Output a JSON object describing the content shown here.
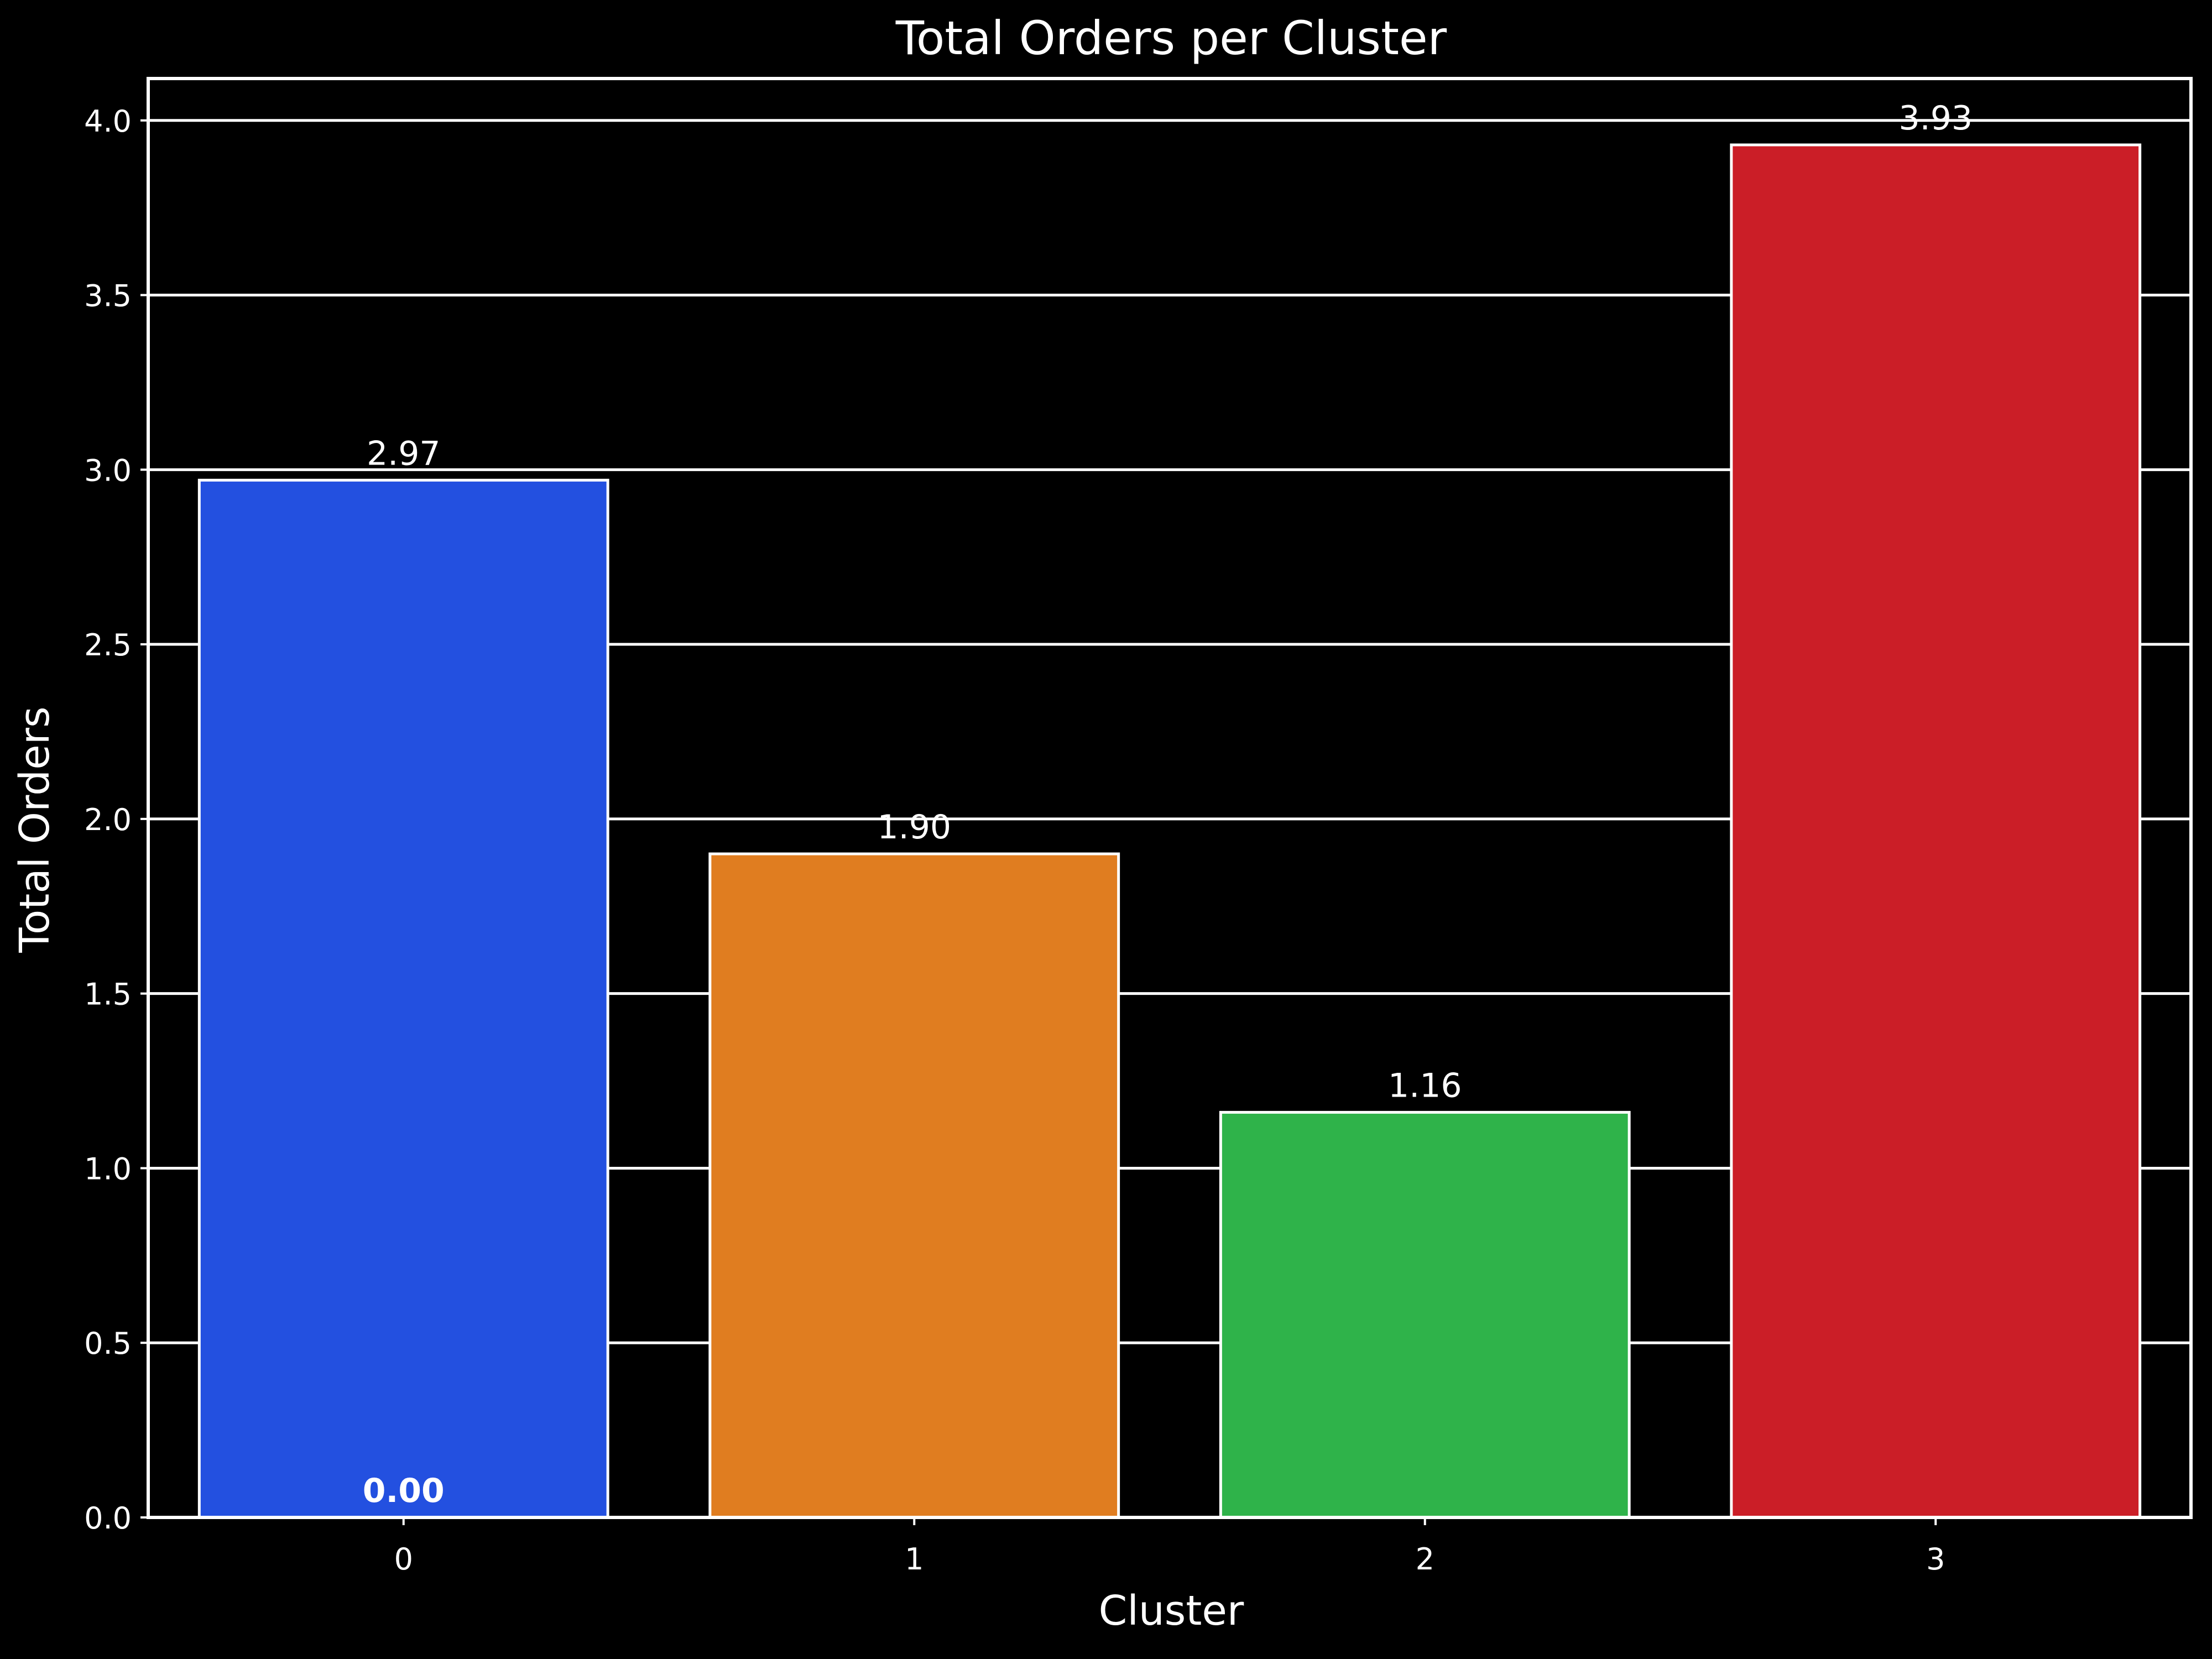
{
  "chart_data": {
    "type": "bar",
    "title": "Total Orders per Cluster",
    "xlabel": "Cluster",
    "ylabel": "Total Orders",
    "categories": [
      "0",
      "1",
      "2",
      "3"
    ],
    "values": [
      2.97,
      1.9,
      1.16,
      3.93
    ],
    "bar_labels": [
      "2.97",
      "1.90",
      "1.16",
      "3.93"
    ],
    "extra_label": "0.00",
    "colors": [
      "#2350e0",
      "#e07d20",
      "#2fb34a",
      "#cb1e27"
    ],
    "ylim": [
      0,
      4.12
    ],
    "yticks": [
      0.0,
      0.5,
      1.0,
      1.5,
      2.0,
      2.5,
      3.0,
      3.5,
      4.0
    ],
    "ytick_labels": [
      "0.0",
      "0.5",
      "1.0",
      "1.5",
      "2.0",
      "2.5",
      "3.0",
      "3.5",
      "4.0"
    ],
    "grid": true,
    "background": "#000000",
    "foreground": "#ffffff"
  }
}
